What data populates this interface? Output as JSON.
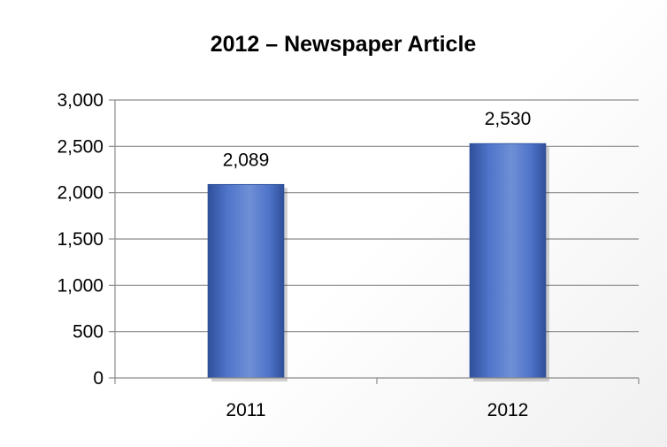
{
  "chart_data": {
    "type": "bar",
    "title": "2012 – Newspaper Article",
    "categories": [
      "2011",
      "2012"
    ],
    "values": [
      2089,
      2530
    ],
    "data_labels": [
      "2,089",
      "2,530"
    ],
    "y_ticks": [
      0,
      500,
      1000,
      1500,
      2000,
      2500,
      3000
    ],
    "y_tick_labels": [
      "0",
      "500",
      "1,000",
      "1,500",
      "2,000",
      "2,500",
      "3,000"
    ],
    "ylim": [
      0,
      3000
    ],
    "xlabel": "",
    "ylabel": "",
    "grid": true,
    "legend": "none",
    "colors": {
      "bar_light": "#6f8fd6",
      "bar_mid": "#4f74c9",
      "bar_dark": "#2f4f9a",
      "gridline": "#8c8c8c",
      "axis": "#8c8c8c"
    }
  }
}
